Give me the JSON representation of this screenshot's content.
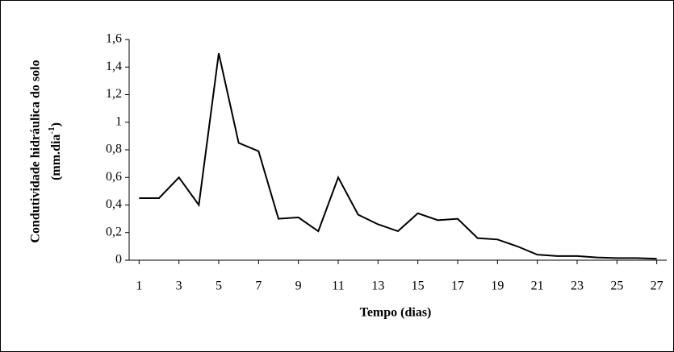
{
  "chart_data": {
    "type": "line",
    "ylabel": "Condutividade hidráulica do solo",
    "yunit": {
      "base": "(mm.dia",
      "sup": "-1",
      "end": ")"
    },
    "xlabel": "Tempo (dias)",
    "x": [
      1,
      2,
      3,
      4,
      5,
      6,
      7,
      8,
      9,
      10,
      11,
      12,
      13,
      14,
      15,
      16,
      17,
      18,
      19,
      20,
      21,
      22,
      23,
      24,
      25,
      26,
      27
    ],
    "series": [
      {
        "name": "Condutividade",
        "color": "#000000",
        "values": [
          0.45,
          0.45,
          0.6,
          0.4,
          1.5,
          0.85,
          0.79,
          0.3,
          0.31,
          0.21,
          0.6,
          0.33,
          0.26,
          0.21,
          0.34,
          0.29,
          0.3,
          0.16,
          0.15,
          0.1,
          0.04,
          0.03,
          0.03,
          0.02,
          0.015,
          0.015,
          0.01
        ]
      }
    ],
    "xlim": [
      0.5,
      27.5
    ],
    "xticks": [
      1,
      3,
      5,
      7,
      9,
      11,
      13,
      15,
      17,
      19,
      21,
      23,
      25,
      27
    ],
    "ylim": [
      0,
      1.6
    ],
    "yticks": [
      0,
      {
        "value": 0.2,
        "label": "0,2"
      },
      {
        "value": 0.4,
        "label": "0,4"
      },
      {
        "value": 0.6,
        "label": "0,6"
      },
      {
        "value": 0.8,
        "label": "0,8"
      },
      1,
      {
        "value": 1.2,
        "label": "1,2"
      },
      {
        "value": 1.4,
        "label": "1,4"
      },
      {
        "value": 1.6,
        "label": "1,6"
      }
    ],
    "grid": false
  }
}
